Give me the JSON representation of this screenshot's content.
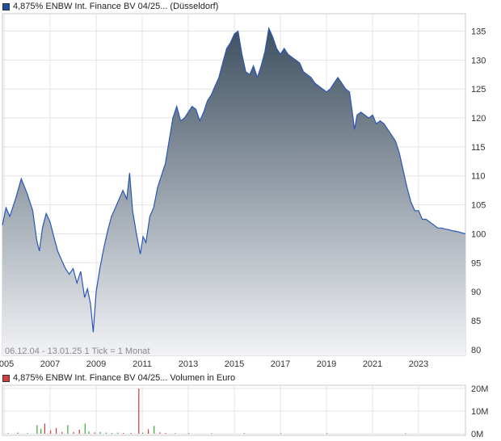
{
  "price_chart": {
    "legend_label": "4,875% ENBW Int. Finance BV 04/25... (Düsseldorf)",
    "legend_color": "#1f4e9c",
    "footnote": "06.12.04 - 13.01.25   1 Tick = 1 Monat",
    "watermark": "A",
    "line_color": "#2a56b8",
    "fill_top_color": "#3e5060",
    "fill_bottom_color": "#f2f3f6"
  },
  "volume_chart": {
    "legend_label": "4,875% ENBW Int. Finance BV 04/25... Volumen in Euro",
    "legend_color": "#d04040",
    "up_color": "#3aa83a",
    "down_color": "#d23c3c"
  },
  "chart_data": [
    {
      "type": "area",
      "title": "4,875% ENBW Int. Finance BV 04/25... (Düsseldorf)",
      "x_tick_labels": [
        "2005",
        "2007",
        "2009",
        "2011",
        "2013",
        "2015",
        "2017",
        "2019",
        "2021",
        "2023"
      ],
      "y_ticks": [
        80,
        85,
        90,
        95,
        100,
        105,
        110,
        115,
        120,
        125,
        130,
        135
      ],
      "ylim": [
        79,
        138
      ],
      "xlim": [
        "2004-12-06",
        "2025-01-13"
      ],
      "grid": true,
      "y_axis_side": "right",
      "series": [
        {
          "name": "4,875% ENBW Int. Finance BV 04/25... (Düsseldorf)",
          "points": [
            [
              "2004-12-06",
              101.5
            ],
            [
              "2005-02-01",
              104.5
            ],
            [
              "2005-04-01",
              103.0
            ],
            [
              "2005-07-01",
              106.0
            ],
            [
              "2005-10-01",
              109.5
            ],
            [
              "2006-01-01",
              107.0
            ],
            [
              "2006-04-01",
              104.0
            ],
            [
              "2006-06-01",
              99.0
            ],
            [
              "2006-07-15",
              97.0
            ],
            [
              "2006-09-01",
              101.0
            ],
            [
              "2006-11-01",
              103.5
            ],
            [
              "2007-01-01",
              102.0
            ],
            [
              "2007-03-01",
              99.5
            ],
            [
              "2007-05-01",
              97.0
            ],
            [
              "2007-07-01",
              95.5
            ],
            [
              "2007-09-01",
              94.0
            ],
            [
              "2007-11-01",
              93.0
            ],
            [
              "2008-01-01",
              94.0
            ],
            [
              "2008-03-01",
              91.5
            ],
            [
              "2008-05-01",
              93.5
            ],
            [
              "2008-07-01",
              89.0
            ],
            [
              "2008-08-15",
              90.5
            ],
            [
              "2008-10-01",
              88.0
            ],
            [
              "2008-11-15",
              83.0
            ],
            [
              "2009-01-01",
              90.0
            ],
            [
              "2009-03-01",
              94.0
            ],
            [
              "2009-05-01",
              97.5
            ],
            [
              "2009-07-01",
              100.5
            ],
            [
              "2009-09-01",
              103.0
            ],
            [
              "2009-11-01",
              104.5
            ],
            [
              "2010-01-01",
              106.0
            ],
            [
              "2010-03-01",
              107.5
            ],
            [
              "2010-05-01",
              106.0
            ],
            [
              "2010-06-15",
              110.5
            ],
            [
              "2010-08-01",
              104.0
            ],
            [
              "2010-10-01",
              100.0
            ],
            [
              "2010-12-01",
              96.5
            ],
            [
              "2011-01-15",
              99.5
            ],
            [
              "2011-03-01",
              98.5
            ],
            [
              "2011-05-01",
              103.0
            ],
            [
              "2011-07-01",
              104.5
            ],
            [
              "2011-09-01",
              108.0
            ],
            [
              "2011-11-01",
              110.0
            ],
            [
              "2012-01-01",
              112.0
            ],
            [
              "2012-03-01",
              116.0
            ],
            [
              "2012-05-01",
              120.0
            ],
            [
              "2012-07-01",
              122.0
            ],
            [
              "2012-09-01",
              119.5
            ],
            [
              "2012-11-01",
              120.0
            ],
            [
              "2013-01-01",
              121.0
            ],
            [
              "2013-03-01",
              122.0
            ],
            [
              "2013-05-01",
              121.5
            ],
            [
              "2013-07-01",
              119.5
            ],
            [
              "2013-09-01",
              121.0
            ],
            [
              "2013-11-01",
              123.0
            ],
            [
              "2014-01-01",
              124.0
            ],
            [
              "2014-03-01",
              125.5
            ],
            [
              "2014-05-01",
              127.0
            ],
            [
              "2014-07-01",
              129.5
            ],
            [
              "2014-09-01",
              132.0
            ],
            [
              "2014-11-01",
              133.0
            ],
            [
              "2015-01-01",
              134.5
            ],
            [
              "2015-03-01",
              135.0
            ],
            [
              "2015-05-01",
              131.0
            ],
            [
              "2015-07-01",
              128.0
            ],
            [
              "2015-09-01",
              127.5
            ],
            [
              "2015-11-01",
              129.0
            ],
            [
              "2016-01-01",
              127.0
            ],
            [
              "2016-03-01",
              129.0
            ],
            [
              "2016-05-01",
              131.5
            ],
            [
              "2016-07-01",
              135.5
            ],
            [
              "2016-09-01",
              134.0
            ],
            [
              "2016-11-01",
              132.0
            ],
            [
              "2017-01-01",
              131.0
            ],
            [
              "2017-03-01",
              132.0
            ],
            [
              "2017-05-01",
              131.0
            ],
            [
              "2017-07-01",
              130.5
            ],
            [
              "2017-09-01",
              130.0
            ],
            [
              "2017-11-01",
              129.5
            ],
            [
              "2018-01-01",
              128.0
            ],
            [
              "2018-03-01",
              127.5
            ],
            [
              "2018-05-01",
              127.0
            ],
            [
              "2018-07-01",
              126.0
            ],
            [
              "2018-09-01",
              125.5
            ],
            [
              "2018-11-01",
              125.0
            ],
            [
              "2019-01-01",
              124.5
            ],
            [
              "2019-03-01",
              125.0
            ],
            [
              "2019-05-01",
              126.0
            ],
            [
              "2019-07-01",
              127.0
            ],
            [
              "2019-09-01",
              126.0
            ],
            [
              "2019-11-01",
              125.0
            ],
            [
              "2020-01-01",
              124.5
            ],
            [
              "2020-02-15",
              121.0
            ],
            [
              "2020-03-20",
              118.0
            ],
            [
              "2020-05-01",
              120.5
            ],
            [
              "2020-07-01",
              121.0
            ],
            [
              "2020-09-01",
              120.5
            ],
            [
              "2020-11-01",
              120.0
            ],
            [
              "2021-01-01",
              120.5
            ],
            [
              "2021-03-01",
              119.0
            ],
            [
              "2021-05-01",
              119.5
            ],
            [
              "2021-07-01",
              119.0
            ],
            [
              "2021-09-01",
              118.0
            ],
            [
              "2021-11-01",
              117.0
            ],
            [
              "2022-01-01",
              116.0
            ],
            [
              "2022-03-01",
              114.0
            ],
            [
              "2022-05-01",
              111.0
            ],
            [
              "2022-07-01",
              108.0
            ],
            [
              "2022-09-01",
              105.5
            ],
            [
              "2022-11-01",
              104.0
            ],
            [
              "2023-01-01",
              104.0
            ],
            [
              "2023-03-01",
              102.5
            ],
            [
              "2023-05-01",
              102.5
            ],
            [
              "2023-07-01",
              102.0
            ],
            [
              "2023-09-01",
              101.5
            ],
            [
              "2023-11-01",
              101.0
            ],
            [
              "2024-01-01",
              101.0
            ],
            [
              "2024-03-01",
              100.8
            ],
            [
              "2024-05-01",
              100.7
            ],
            [
              "2024-07-01",
              100.5
            ],
            [
              "2024-09-01",
              100.4
            ],
            [
              "2024-11-01",
              100.2
            ],
            [
              "2025-01-13",
              100.0
            ]
          ]
        }
      ]
    },
    {
      "type": "bar",
      "title": "4,875% ENBW Int. Finance BV 04/25... Volumen in Euro",
      "y_tick_labels": [
        "0M",
        "10M",
        "20M"
      ],
      "ylim": [
        0,
        20000000
      ],
      "grid": true,
      "y_axis_side": "right",
      "series": [
        {
          "name": "Volumen in Euro",
          "bars": [
            {
              "date": "2005-03-01",
              "value": 300000,
              "direction": "up"
            },
            {
              "date": "2005-08-01",
              "value": 500000,
              "direction": "down"
            },
            {
              "date": "2006-01-01",
              "value": 300000,
              "direction": "up"
            },
            {
              "date": "2006-06-01",
              "value": 3800000,
              "direction": "up"
            },
            {
              "date": "2006-08-01",
              "value": 2200000,
              "direction": "up"
            },
            {
              "date": "2006-10-01",
              "value": 4500000,
              "direction": "down"
            },
            {
              "date": "2007-01-01",
              "value": 1500000,
              "direction": "down"
            },
            {
              "date": "2007-04-01",
              "value": 2500000,
              "direction": "down"
            },
            {
              "date": "2007-07-01",
              "value": 700000,
              "direction": "down"
            },
            {
              "date": "2007-10-01",
              "value": 3800000,
              "direction": "up"
            },
            {
              "date": "2008-01-01",
              "value": 800000,
              "direction": "down"
            },
            {
              "date": "2008-04-01",
              "value": 1800000,
              "direction": "down"
            },
            {
              "date": "2008-07-01",
              "value": 4500000,
              "direction": "up"
            },
            {
              "date": "2008-09-01",
              "value": 1000000,
              "direction": "up"
            },
            {
              "date": "2008-12-01",
              "value": 600000,
              "direction": "down"
            },
            {
              "date": "2009-03-01",
              "value": 800000,
              "direction": "up"
            },
            {
              "date": "2009-06-01",
              "value": 500000,
              "direction": "up"
            },
            {
              "date": "2009-09-01",
              "value": 400000,
              "direction": "up"
            },
            {
              "date": "2009-12-01",
              "value": 500000,
              "direction": "up"
            },
            {
              "date": "2010-03-01",
              "value": 400000,
              "direction": "down"
            },
            {
              "date": "2010-07-01",
              "value": 400000,
              "direction": "down"
            },
            {
              "date": "2010-11-01",
              "value": 20000000,
              "direction": "down"
            },
            {
              "date": "2011-01-01",
              "value": 500000,
              "direction": "up"
            },
            {
              "date": "2011-04-01",
              "value": 2000000,
              "direction": "down"
            },
            {
              "date": "2011-07-01",
              "value": 3500000,
              "direction": "up"
            },
            {
              "date": "2011-10-01",
              "value": 600000,
              "direction": "down"
            },
            {
              "date": "2012-01-01",
              "value": 400000,
              "direction": "down"
            },
            {
              "date": "2012-06-01",
              "value": 300000,
              "direction": "up"
            },
            {
              "date": "2013-01-01",
              "value": 300000,
              "direction": "down"
            },
            {
              "date": "2014-01-01",
              "value": 250000,
              "direction": "up"
            },
            {
              "date": "2015-06-01",
              "value": 250000,
              "direction": "down"
            },
            {
              "date": "2017-01-01",
              "value": 200000,
              "direction": "up"
            },
            {
              "date": "2019-01-01",
              "value": 200000,
              "direction": "down"
            },
            {
              "date": "2022-06-01",
              "value": 200000,
              "direction": "down"
            }
          ]
        }
      ]
    }
  ]
}
